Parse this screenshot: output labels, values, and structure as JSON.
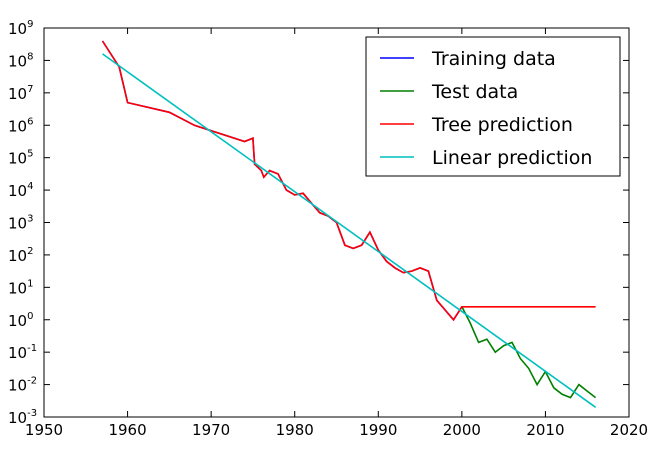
{
  "chart_data": {
    "type": "line",
    "title": "",
    "xlabel": "",
    "ylabel": "",
    "x_axis": {
      "range": [
        1950,
        2020
      ],
      "ticks": [
        1950,
        1960,
        1970,
        1980,
        1990,
        2000,
        2010,
        2020
      ],
      "tick_labels": [
        "1950",
        "1960",
        "1970",
        "1980",
        "1990",
        "2000",
        "2010",
        "2020"
      ]
    },
    "y_axis": {
      "scale": "log",
      "range_exponents": [
        -3,
        9
      ],
      "ticks": [
        -3,
        -2,
        -1,
        0,
        1,
        2,
        3,
        4,
        5,
        6,
        7,
        8,
        9
      ],
      "tick_base": "10",
      "tick_exponent_labels": [
        "-3",
        "-2",
        "-1",
        "0",
        "1",
        "2",
        "3",
        "4",
        "5",
        "6",
        "7",
        "8",
        "9"
      ]
    },
    "legend": {
      "position": "top-right",
      "entries": [
        {
          "label": "Training data",
          "color": "#0000ff"
        },
        {
          "label": "Test data",
          "color": "#008000"
        },
        {
          "label": "Tree prediction",
          "color": "#ff0000"
        },
        {
          "label": "Linear prediction",
          "color": "#00bfbf"
        }
      ]
    },
    "series": [
      {
        "name": "Training data",
        "color": "#0000ff",
        "note": "y values as log10",
        "x": [
          1957,
          1959,
          1960,
          1965,
          1968,
          1974,
          1975,
          1975.2,
          1976,
          1976.3,
          1977,
          1978,
          1979,
          1980,
          1981,
          1982,
          1983,
          1984,
          1985,
          1986,
          1987,
          1988,
          1989,
          1990,
          1991,
          1992,
          1993,
          1994,
          1995,
          1996,
          1997,
          1998,
          1999,
          2000
        ],
        "y": [
          8.6,
          7.8,
          6.7,
          6.4,
          6.0,
          5.5,
          5.6,
          4.8,
          4.6,
          4.4,
          4.6,
          4.5,
          4.0,
          3.85,
          3.9,
          3.6,
          3.3,
          3.2,
          3.0,
          2.3,
          2.2,
          2.3,
          2.7,
          2.15,
          1.8,
          1.6,
          1.45,
          1.5,
          1.6,
          1.5,
          0.6,
          0.3,
          0.0,
          0.4
        ]
      },
      {
        "name": "Test data",
        "color": "#008000",
        "note": "y values as log10",
        "x": [
          2000,
          2001,
          2002,
          2003,
          2004,
          2005,
          2006,
          2007,
          2008,
          2009,
          2010,
          2011,
          2012,
          2013,
          2014,
          2015,
          2016
        ],
        "y": [
          0.4,
          -0.1,
          -0.7,
          -0.6,
          -1.0,
          -0.8,
          -0.7,
          -1.2,
          -1.5,
          -2.0,
          -1.6,
          -2.1,
          -2.3,
          -2.4,
          -2.0,
          -2.2,
          -2.4
        ]
      },
      {
        "name": "Tree prediction",
        "color": "#ff0000",
        "note": "y values as log10",
        "x": [
          1957,
          1959,
          1960,
          1965,
          1968,
          1974,
          1975,
          1975.2,
          1976,
          1976.3,
          1977,
          1978,
          1979,
          1980,
          1981,
          1982,
          1983,
          1984,
          1985,
          1986,
          1987,
          1988,
          1989,
          1990,
          1991,
          1992,
          1993,
          1994,
          1995,
          1996,
          1997,
          1998,
          1999,
          2000,
          2016
        ],
        "y": [
          8.6,
          7.8,
          6.7,
          6.4,
          6.0,
          5.5,
          5.6,
          4.8,
          4.6,
          4.4,
          4.6,
          4.5,
          4.0,
          3.85,
          3.9,
          3.6,
          3.3,
          3.2,
          3.0,
          2.3,
          2.2,
          2.3,
          2.7,
          2.15,
          1.8,
          1.6,
          1.45,
          1.5,
          1.6,
          1.5,
          0.6,
          0.3,
          0.0,
          0.4,
          0.4
        ]
      },
      {
        "name": "Linear prediction",
        "color": "#00bfbf",
        "note": "y values as log10",
        "x": [
          1957,
          2016
        ],
        "y": [
          8.2,
          -2.7
        ]
      }
    ]
  }
}
